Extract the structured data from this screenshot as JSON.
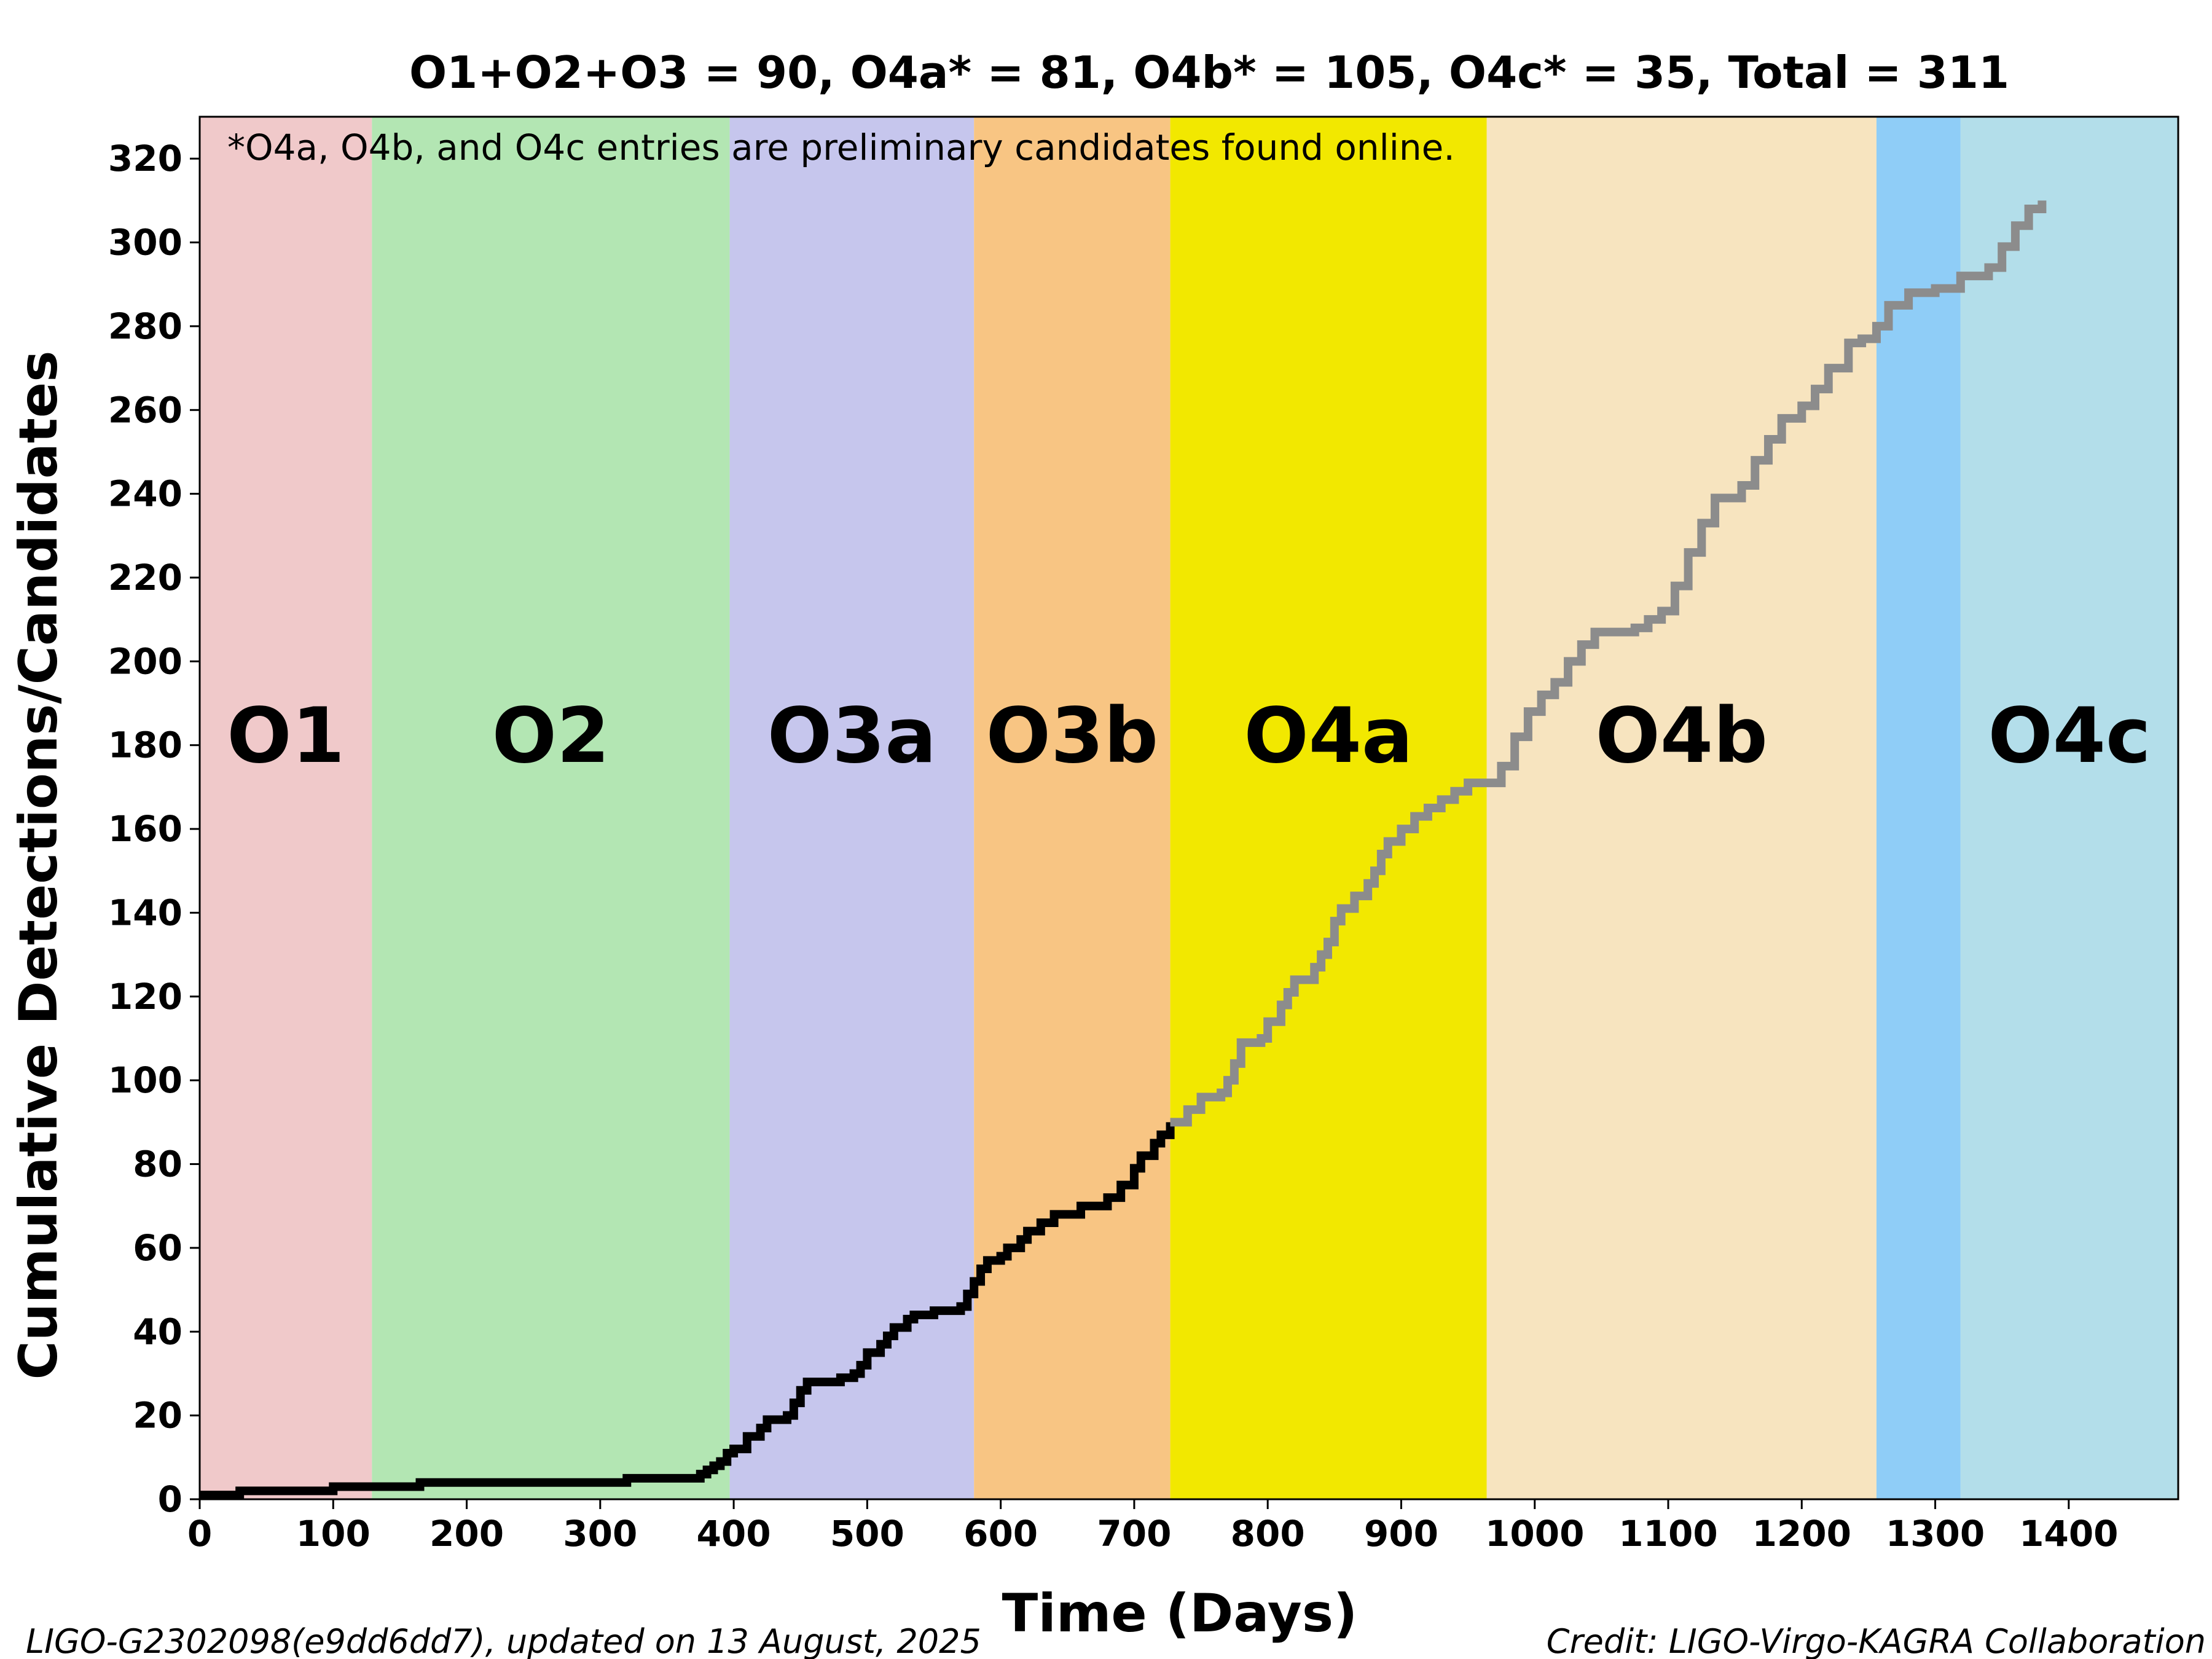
{
  "chart_data": {
    "type": "line",
    "title": "O1+O2+O3 = 90,  O4a* = 81,  O4b* = 105,  O4c* = 35, Total = 311",
    "xlabel": "Time (Days)",
    "ylabel": "Cumulative Detections/Candidates",
    "xlim": [
      0,
      1482
    ],
    "ylim": [
      0,
      330
    ],
    "xticks": [
      0,
      100,
      200,
      300,
      400,
      500,
      600,
      700,
      800,
      900,
      1000,
      1100,
      1200,
      1300,
      1400
    ],
    "yticks": [
      0,
      20,
      40,
      60,
      80,
      100,
      120,
      140,
      160,
      180,
      200,
      220,
      240,
      260,
      280,
      300,
      320
    ],
    "grid": false,
    "legend": "none",
    "annotation": "*O4a, O4b, and O4c entries are preliminary candidates found online.",
    "bands": [
      {
        "label": "O1",
        "start": 0,
        "end": 129,
        "color": "#f0c9ca"
      },
      {
        "label": "O2",
        "start": 129,
        "end": 397,
        "color": "#b3e6b3"
      },
      {
        "label": "O3a",
        "start": 397,
        "end": 580,
        "color": "#c6c6ed"
      },
      {
        "label": "O3b",
        "start": 580,
        "end": 727,
        "color": "#f8c583"
      },
      {
        "label": "O4a",
        "start": 727,
        "end": 964,
        "color": "#f2e800"
      },
      {
        "label": "O4b",
        "start": 964,
        "end": 1256,
        "color": "#f7e4bf"
      },
      {
        "label": "",
        "start": 1256,
        "end": 1319,
        "color": "#8fcdf7"
      },
      {
        "label": "O4c",
        "start": 1319,
        "end": 1482,
        "color": "#b3deea"
      }
    ],
    "series": [
      {
        "color": "#000000",
        "points": [
          [
            0,
            1
          ],
          [
            30,
            1
          ],
          [
            30,
            2
          ],
          [
            100,
            2
          ],
          [
            100,
            3
          ],
          [
            165,
            3
          ],
          [
            165,
            4
          ],
          [
            320,
            4
          ],
          [
            320,
            5
          ],
          [
            370,
            5
          ],
          [
            375,
            6
          ],
          [
            380,
            7
          ],
          [
            385,
            8
          ],
          [
            390,
            9
          ],
          [
            395,
            11
          ],
          [
            400,
            12
          ],
          [
            410,
            15
          ],
          [
            420,
            17
          ],
          [
            425,
            19
          ],
          [
            440,
            20
          ],
          [
            445,
            23
          ],
          [
            450,
            26
          ],
          [
            455,
            28
          ],
          [
            480,
            29
          ],
          [
            490,
            30
          ],
          [
            495,
            32
          ],
          [
            500,
            35
          ],
          [
            510,
            37
          ],
          [
            515,
            39
          ],
          [
            520,
            41
          ],
          [
            530,
            43
          ],
          [
            535,
            44
          ],
          [
            550,
            45
          ],
          [
            570,
            46
          ],
          [
            575,
            49
          ],
          [
            580,
            52
          ],
          [
            585,
            55
          ],
          [
            590,
            57
          ],
          [
            600,
            58
          ],
          [
            605,
            60
          ],
          [
            615,
            62
          ],
          [
            620,
            64
          ],
          [
            630,
            66
          ],
          [
            640,
            68
          ],
          [
            660,
            70
          ],
          [
            680,
            72
          ],
          [
            690,
            75
          ],
          [
            700,
            79
          ],
          [
            705,
            82
          ],
          [
            715,
            85
          ],
          [
            720,
            87
          ],
          [
            727,
            90
          ]
        ]
      },
      {
        "color": "#8c8c8c",
        "points": [
          [
            727,
            90
          ],
          [
            740,
            93
          ],
          [
            750,
            96
          ],
          [
            765,
            97
          ],
          [
            770,
            100
          ],
          [
            775,
            104
          ],
          [
            780,
            109
          ],
          [
            795,
            110
          ],
          [
            800,
            114
          ],
          [
            810,
            118
          ],
          [
            815,
            121
          ],
          [
            820,
            124
          ],
          [
            835,
            127
          ],
          [
            840,
            130
          ],
          [
            845,
            133
          ],
          [
            850,
            138
          ],
          [
            855,
            141
          ],
          [
            865,
            144
          ],
          [
            875,
            147
          ],
          [
            880,
            150
          ],
          [
            885,
            154
          ],
          [
            890,
            157
          ],
          [
            900,
            160
          ],
          [
            910,
            163
          ],
          [
            920,
            165
          ],
          [
            930,
            167
          ],
          [
            940,
            169
          ],
          [
            950,
            171
          ],
          [
            964,
            171
          ],
          [
            975,
            175
          ],
          [
            985,
            182
          ],
          [
            995,
            188
          ],
          [
            1005,
            192
          ],
          [
            1015,
            195
          ],
          [
            1025,
            200
          ],
          [
            1035,
            204
          ],
          [
            1045,
            207
          ],
          [
            1075,
            208
          ],
          [
            1085,
            210
          ],
          [
            1095,
            212
          ],
          [
            1105,
            218
          ],
          [
            1115,
            226
          ],
          [
            1125,
            233
          ],
          [
            1135,
            239
          ],
          [
            1155,
            242
          ],
          [
            1165,
            248
          ],
          [
            1175,
            253
          ],
          [
            1185,
            258
          ],
          [
            1200,
            261
          ],
          [
            1210,
            265
          ],
          [
            1220,
            270
          ],
          [
            1235,
            276
          ],
          [
            1245,
            277
          ],
          [
            1256,
            280
          ],
          [
            1265,
            285
          ],
          [
            1280,
            288
          ],
          [
            1300,
            289
          ],
          [
            1319,
            292
          ],
          [
            1340,
            294
          ],
          [
            1350,
            299
          ],
          [
            1360,
            304
          ],
          [
            1370,
            308
          ],
          [
            1380,
            310
          ]
        ]
      }
    ]
  },
  "footer": {
    "left": "LIGO-G2302098(e9dd6dd7), updated on 13 August, 2025",
    "right": "Credit: LIGO-Virgo-KAGRA Collaboration"
  }
}
